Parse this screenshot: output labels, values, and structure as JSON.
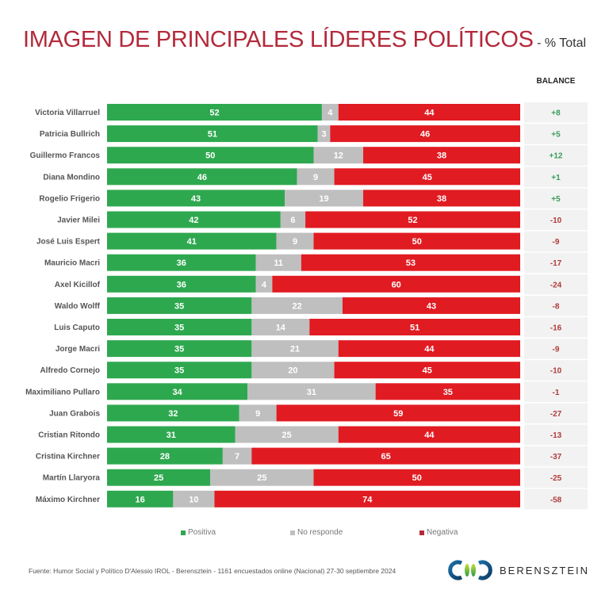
{
  "header": {
    "title": "IMAGEN DE PRINCIPALES LÍDERES POLÍTICOS",
    "subtitle": "- % Total",
    "balance_label": "BALANCE"
  },
  "colors": {
    "positiva": "#2ea84f",
    "no_responde": "#bfbfbf",
    "negativa": "#e11b22",
    "balance_pos": "#3a9a5a",
    "balance_neg": "#b23a3a",
    "balance_bg": "#f2f2f2",
    "title": "#b3293a"
  },
  "legend": {
    "positiva": "Positiva",
    "no_responde": "No responde",
    "negativa": "Negativa"
  },
  "footer": {
    "source": "Fuente: Humor Social y Político D'Alessio IROL - Berensztein - 1161 encuestados online (Nacional) 27-30 septiembre 2024",
    "brand": "BERENSZTEIN"
  },
  "chart_data": {
    "type": "bar",
    "stacked": true,
    "orientation": "horizontal",
    "title": "IMAGEN DE PRINCIPALES LÍDERES POLÍTICOS - % Total",
    "xlabel": "",
    "ylabel": "",
    "xlim": [
      0,
      100
    ],
    "grid": false,
    "legend_position": "bottom",
    "categories": [
      "Victoria Villarruel",
      "Patricia Bullrich",
      "Guillermo Francos",
      "Diana Mondino",
      "Rogelio Frigerio",
      "Javier Milei",
      "José Luis Espert",
      "Mauricio Macri",
      "Axel Kicillof",
      "Waldo Wolff",
      "Luis Caputo",
      "Jorge Macri",
      "Alfredo Cornejo",
      "Maximiliano Pullaro",
      "Juan Grabois",
      "Cristian Ritondo",
      "Cristina Kirchner",
      "Martín Llaryora",
      "Máximo Kirchner"
    ],
    "series": [
      {
        "name": "Positiva",
        "values": [
          52,
          51,
          50,
          46,
          43,
          42,
          41,
          36,
          36,
          35,
          35,
          35,
          35,
          34,
          32,
          31,
          28,
          25,
          16
        ]
      },
      {
        "name": "No responde",
        "values": [
          4,
          3,
          12,
          9,
          19,
          6,
          9,
          11,
          4,
          22,
          14,
          21,
          20,
          31,
          9,
          25,
          7,
          25,
          10
        ]
      },
      {
        "name": "Negativa",
        "values": [
          44,
          46,
          38,
          45,
          38,
          52,
          50,
          53,
          60,
          43,
          51,
          44,
          45,
          35,
          59,
          44,
          65,
          50,
          74
        ]
      }
    ],
    "balance": [
      "+8",
      "+5",
      "+12",
      "+1",
      "+5",
      "-10",
      "-9",
      "-17",
      "-24",
      "-8",
      "-16",
      "-9",
      "-10",
      "-1",
      "-27",
      "-13",
      "-37",
      "-25",
      "-58"
    ]
  }
}
